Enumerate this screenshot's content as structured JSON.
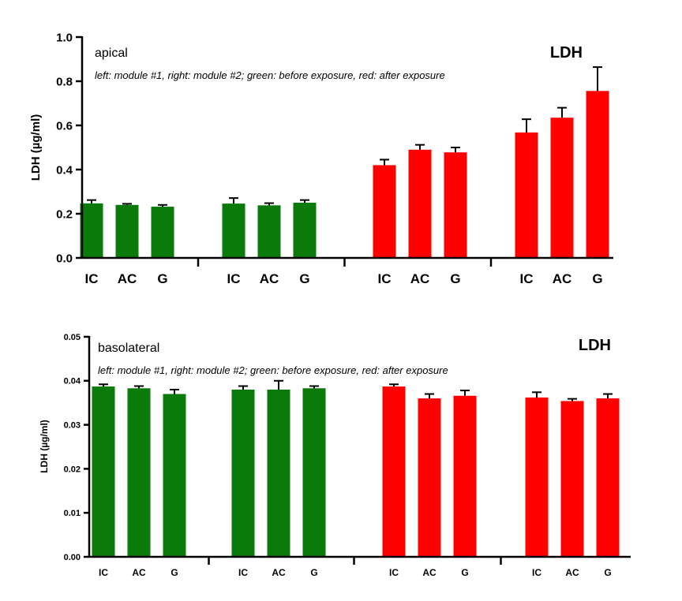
{
  "chart_data": [
    {
      "type": "bar",
      "panel_label": "apical",
      "title": "LDH",
      "note": "left: module #1, right: module #2; green: before exposure, red: after exposure",
      "ylabel": "LDH (µg/ml)",
      "ylim": [
        0,
        1.0
      ],
      "yticks": [
        "0.0",
        "0.2",
        "0.4",
        "0.6",
        "0.8",
        "1.0"
      ],
      "ytick_values": [
        0,
        0.2,
        0.4,
        0.6,
        0.8,
        1.0
      ],
      "groups": [
        {
          "color": "#0a7a0a",
          "categories": [
            "IC",
            "AC",
            "G"
          ],
          "values": [
            0.247,
            0.24,
            0.232
          ],
          "errors": [
            0.015,
            0.005,
            0.008
          ]
        },
        {
          "color": "#0a7a0a",
          "categories": [
            "IC",
            "AC",
            "G"
          ],
          "values": [
            0.246,
            0.238,
            0.25
          ],
          "errors": [
            0.025,
            0.01,
            0.012
          ]
        },
        {
          "color": "#ff0000",
          "categories": [
            "IC",
            "AC",
            "G"
          ],
          "values": [
            0.42,
            0.49,
            0.478
          ],
          "errors": [
            0.025,
            0.022,
            0.022
          ]
        },
        {
          "color": "#ff0000",
          "categories": [
            "IC",
            "AC",
            "G"
          ],
          "values": [
            0.568,
            0.635,
            0.756
          ],
          "errors": [
            0.06,
            0.045,
            0.108
          ]
        }
      ]
    },
    {
      "type": "bar",
      "panel_label": "basolateral",
      "title": "LDH",
      "note": "left: module #1, right: module #2; green: before exposure, red: after exposure",
      "ylabel": "LDH (µg/ml)",
      "ylim": [
        0,
        0.05
      ],
      "yticks": [
        "0.00",
        "0.01",
        "0.02",
        "0.03",
        "0.04",
        "0.05"
      ],
      "ytick_values": [
        0,
        0.01,
        0.02,
        0.03,
        0.04,
        0.05
      ],
      "groups": [
        {
          "color": "#0a7a0a",
          "categories": [
            "IC",
            "AC",
            "G"
          ],
          "values": [
            0.0387,
            0.0383,
            0.037
          ],
          "errors": [
            0.0005,
            0.0005,
            0.001
          ]
        },
        {
          "color": "#0a7a0a",
          "categories": [
            "IC",
            "AC",
            "G"
          ],
          "values": [
            0.038,
            0.038,
            0.0383
          ],
          "errors": [
            0.0008,
            0.002,
            0.0005
          ]
        },
        {
          "color": "#ff0000",
          "categories": [
            "IC",
            "AC",
            "G"
          ],
          "values": [
            0.0387,
            0.036,
            0.0366
          ],
          "errors": [
            0.0005,
            0.001,
            0.0012
          ]
        },
        {
          "color": "#ff0000",
          "categories": [
            "IC",
            "AC",
            "G"
          ],
          "values": [
            0.0362,
            0.0354,
            0.036
          ],
          "errors": [
            0.0012,
            0.0005,
            0.001
          ]
        }
      ]
    }
  ]
}
